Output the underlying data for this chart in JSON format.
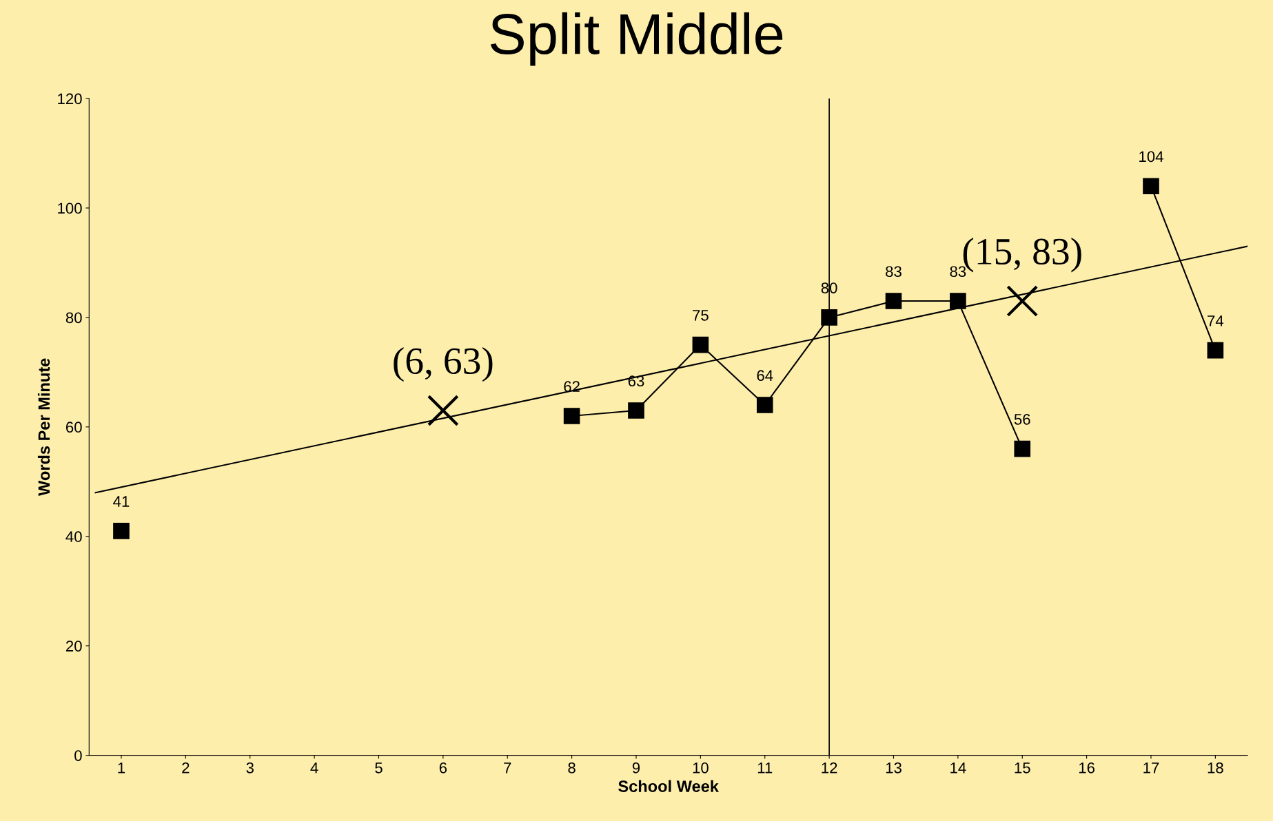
{
  "chart_data": {
    "type": "line",
    "title": "Split Middle",
    "xlabel": "School Week",
    "ylabel": "Words Per Minute",
    "x": [
      1,
      2,
      3,
      4,
      5,
      6,
      7,
      8,
      9,
      10,
      11,
      12,
      13,
      14,
      15,
      16,
      17,
      18
    ],
    "xlim": [
      0.5,
      18.5
    ],
    "xticks": [
      1,
      2,
      3,
      4,
      5,
      6,
      7,
      8,
      9,
      10,
      11,
      12,
      13,
      14,
      15,
      16,
      17,
      18
    ],
    "ylim": [
      0,
      120
    ],
    "yticks": [
      0,
      20,
      40,
      60,
      80,
      100,
      120
    ],
    "series": [
      {
        "color": "#000000",
        "marker": "square",
        "data_labels": true,
        "values": [
          41,
          null,
          null,
          null,
          null,
          null,
          null,
          62,
          63,
          75,
          64,
          80,
          83,
          83,
          56,
          null,
          104,
          74
        ]
      },
      {
        "color": "#000000",
        "marker": "none",
        "x": [
          0.6,
          18.5
        ],
        "values": [
          48,
          93
        ]
      },
      {
        "type": "scatter",
        "color": "#000000",
        "marker": "cross",
        "x": [
          6,
          15
        ],
        "values": [
          63,
          83
        ],
        "value_labels": [
          "(6, 63)",
          "(15, 83)"
        ]
      }
    ],
    "ref_lines": [
      {
        "axis": "x",
        "value": 12,
        "color": "#000000"
      }
    ],
    "grid": false,
    "legend": false
  }
}
